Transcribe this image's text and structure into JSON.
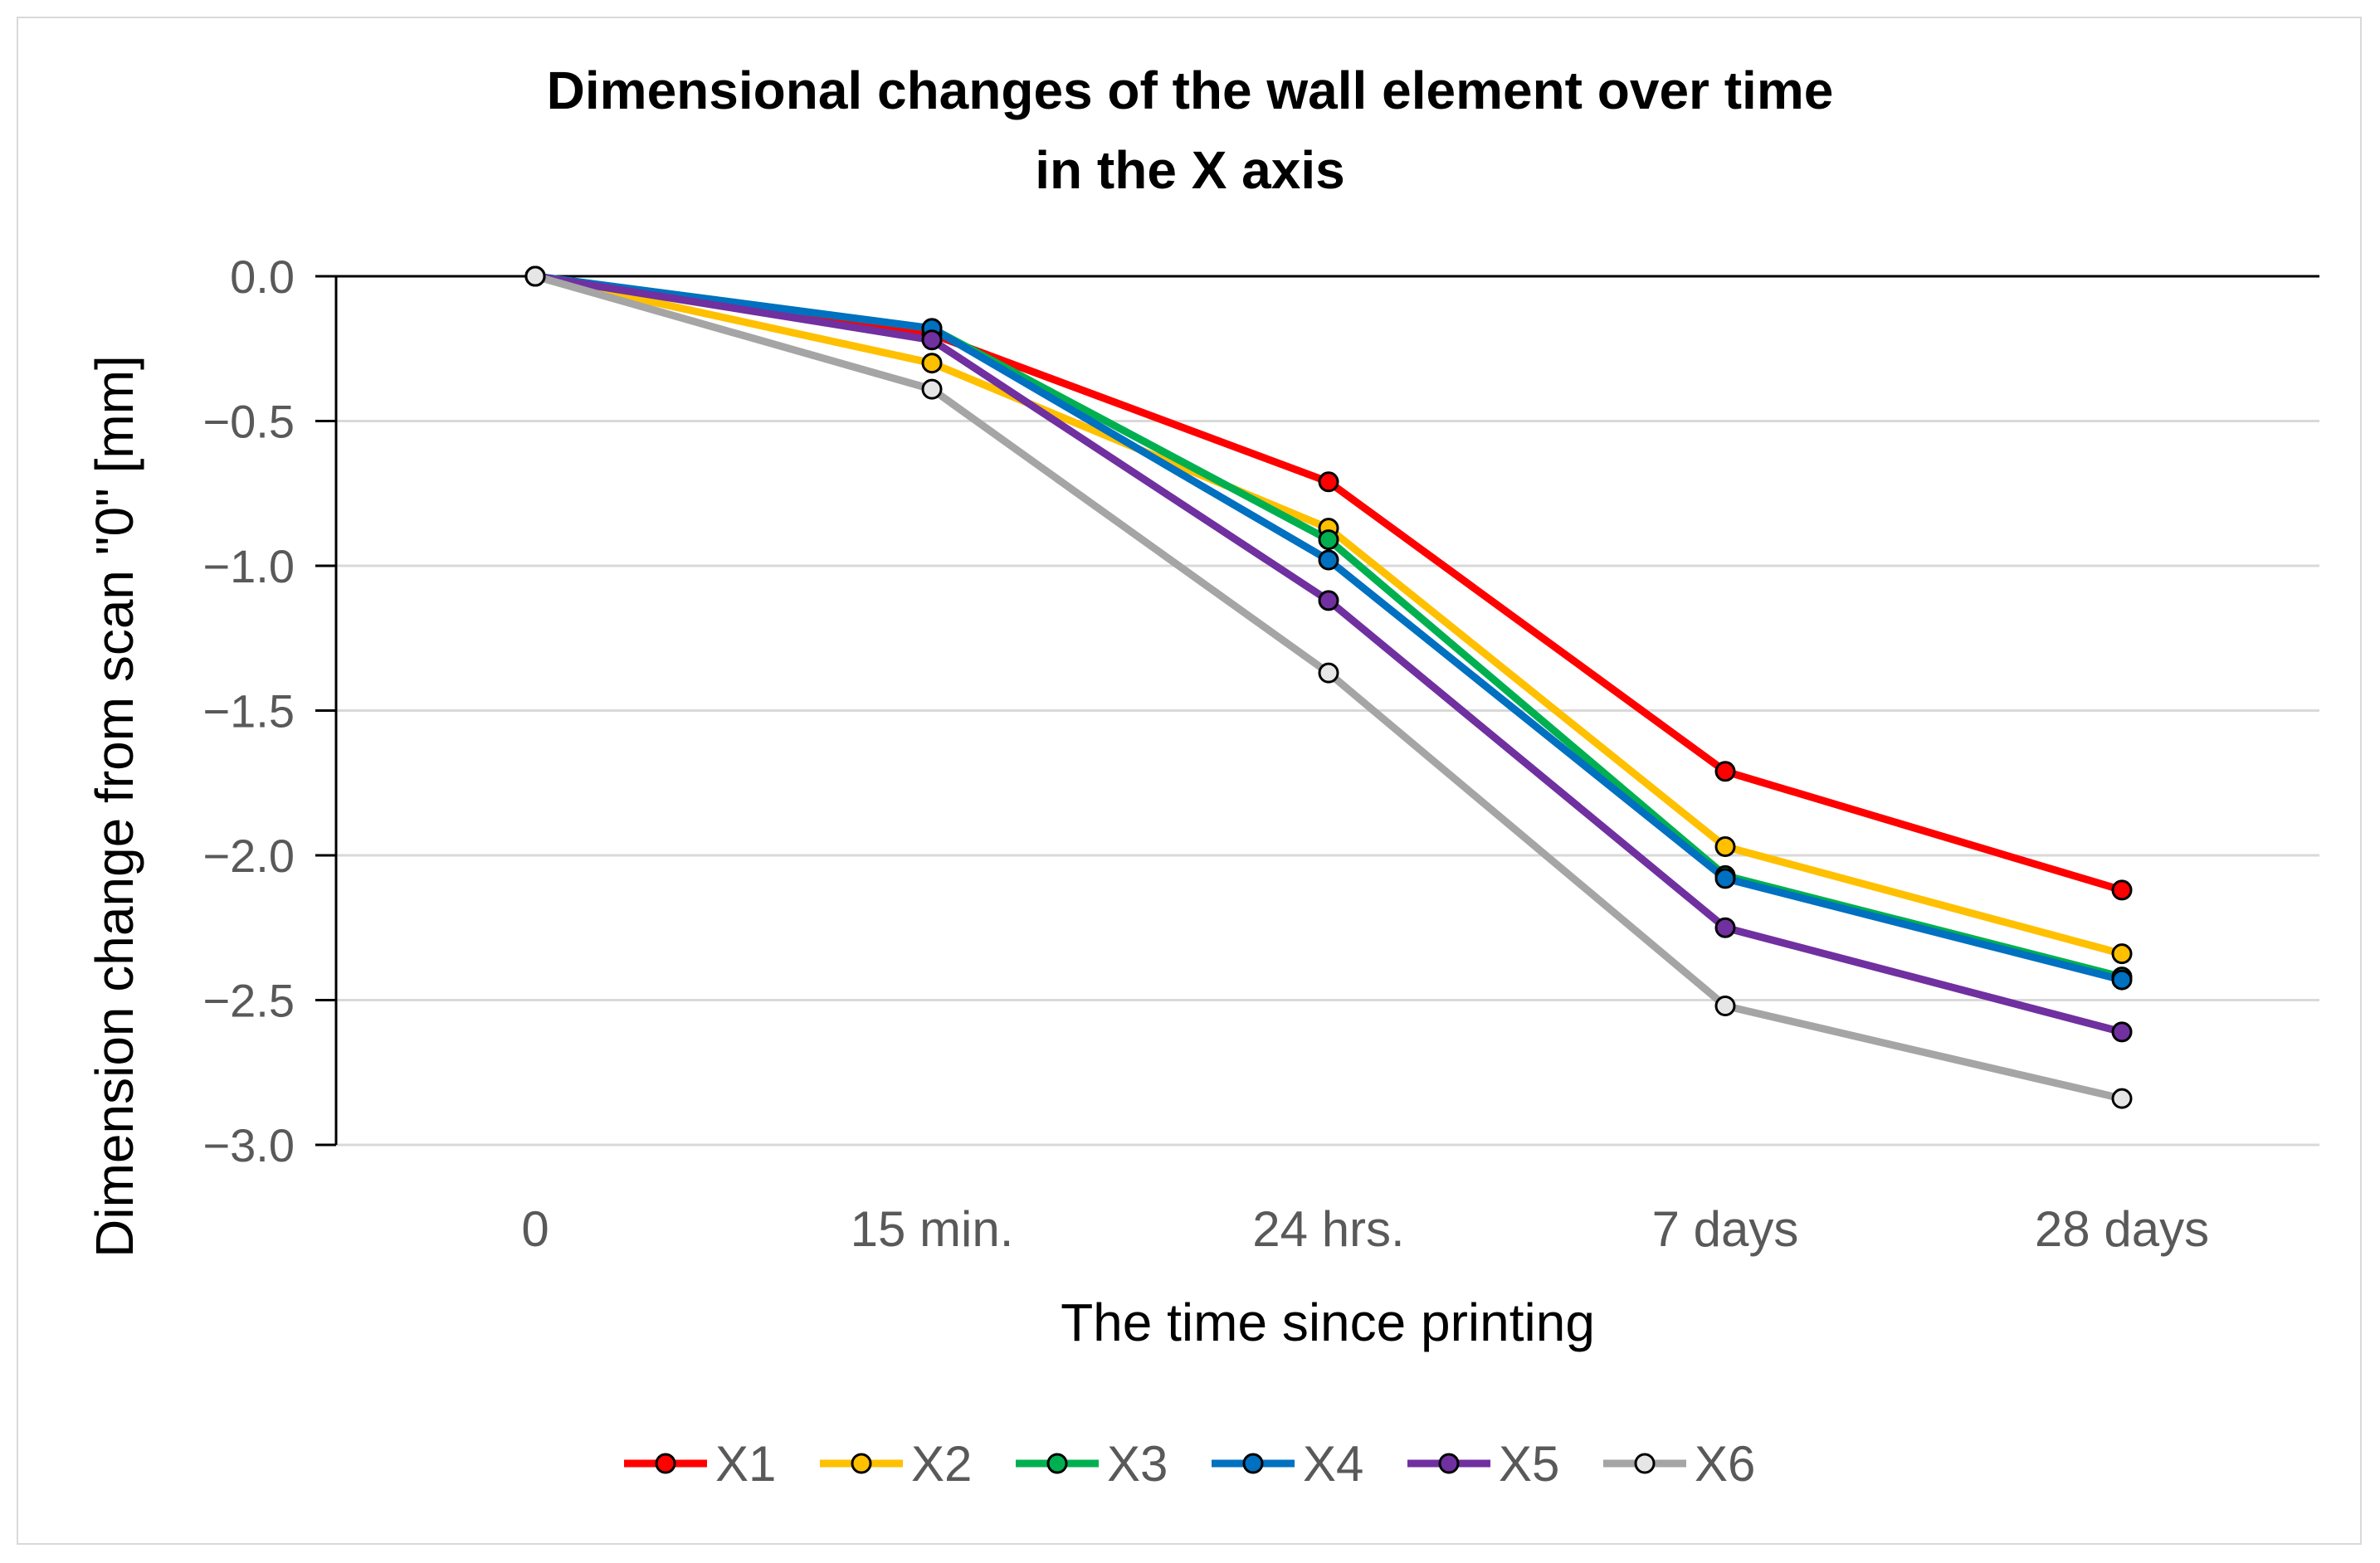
{
  "chart_data": {
    "type": "line",
    "title": [
      "Dimensional changes of the wall element over time",
      "in the X axis"
    ],
    "xlabel": "The time since printing",
    "ylabel": "Dimension change from scan \"0\" [mm]",
    "categories": [
      "0",
      "15 min.",
      "24 hrs.",
      "7 days",
      "28 days"
    ],
    "ylim": [
      -3.0,
      0.0
    ],
    "yticks": [
      0.0,
      -0.5,
      -1.0,
      -1.5,
      -2.0,
      -2.5,
      -3.0
    ],
    "ytick_labels": [
      "0.0",
      "−0.5",
      "−1.0",
      "−1.5",
      "−2.0",
      "−2.5",
      "−3.0"
    ],
    "grid": true,
    "legend_position": "bottom",
    "series": [
      {
        "name": "X1",
        "color": "#ff0000",
        "values": [
          0.0,
          -0.2,
          -0.71,
          -1.71,
          -2.12
        ]
      },
      {
        "name": "X2",
        "color": "#ffc000",
        "values": [
          0.0,
          -0.3,
          -0.87,
          -1.97,
          -2.34
        ]
      },
      {
        "name": "X3",
        "color": "#00b050",
        "values": [
          0.0,
          -0.18,
          -0.91,
          -2.07,
          -2.42
        ]
      },
      {
        "name": "X4",
        "color": "#0070c0",
        "values": [
          0.0,
          -0.18,
          -0.98,
          -2.08,
          -2.43
        ]
      },
      {
        "name": "X5",
        "color": "#7030a0",
        "values": [
          0.0,
          -0.22,
          -1.12,
          -2.25,
          -2.61
        ]
      },
      {
        "name": "X6",
        "color": "#a5a5a5",
        "marker_fill": "#e6e6e6",
        "values": [
          0.0,
          -0.39,
          -1.37,
          -2.52,
          -2.84
        ]
      }
    ]
  }
}
